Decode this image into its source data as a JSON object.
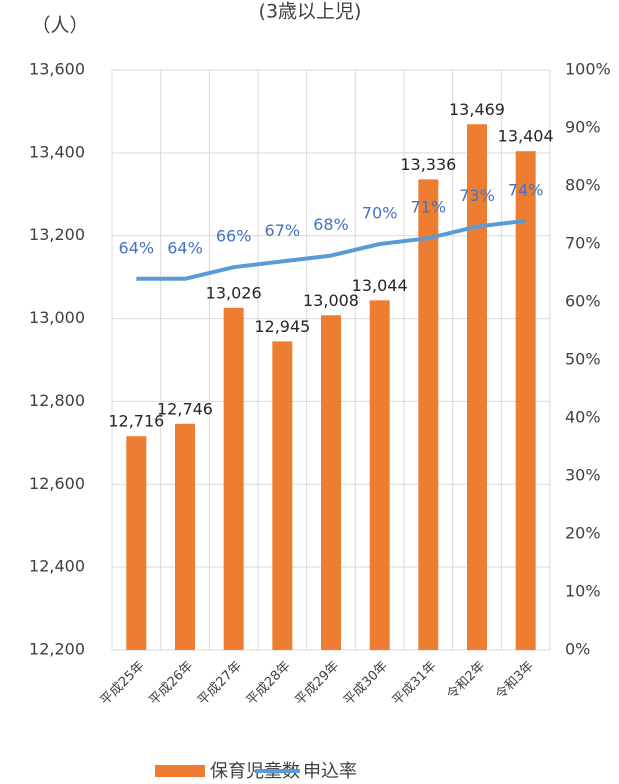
{
  "chart_data": {
    "type": "bar-line",
    "title": "(3歳以上児)",
    "ylabel": "（人）",
    "categories": [
      "平成25年",
      "平成26年",
      "平成27年",
      "平成28年",
      "平成29年",
      "平成30年",
      "平成31年",
      "令和2年",
      "令和3年"
    ],
    "series": [
      {
        "name": "保育児童数",
        "color": "#ed7d31",
        "values": [
          12716,
          12746,
          13026,
          12945,
          13008,
          13044,
          13336,
          13469,
          13404
        ],
        "value_labels": [
          "12,716",
          "12,746",
          "13,026",
          "12,945",
          "13,008",
          "13,044",
          "13,336",
          "13,469",
          "13,404"
        ]
      },
      {
        "name": "申込率",
        "color": "#5b9bd5",
        "axis": "y2",
        "values": [
          64,
          64,
          66,
          67,
          68,
          70,
          71,
          73,
          74
        ],
        "value_labels": [
          "64%",
          "64%",
          "66%",
          "67%",
          "68%",
          "70%",
          "71%",
          "73%",
          "74%"
        ]
      }
    ],
    "ylim": [
      12200,
      13600
    ],
    "yticks": [
      {
        "value": 12200,
        "label": "12,200"
      },
      {
        "value": 12400,
        "label": "12,400"
      },
      {
        "value": 12600,
        "label": "12,600"
      },
      {
        "value": 12800,
        "label": "12,800"
      },
      {
        "value": 13000,
        "label": "13,000"
      },
      {
        "value": 13200,
        "label": "13,200"
      },
      {
        "value": 13400,
        "label": "13,400"
      },
      {
        "value": 13600,
        "label": "13,600"
      }
    ],
    "y2lim": [
      0,
      100
    ],
    "y2ticks": [
      {
        "value": 0,
        "label": "0%"
      },
      {
        "value": 10,
        "label": "10%"
      },
      {
        "value": 20,
        "label": "20%"
      },
      {
        "value": 30,
        "label": "30%"
      },
      {
        "value": 40,
        "label": "40%"
      },
      {
        "value": 50,
        "label": "50%"
      },
      {
        "value": 60,
        "label": "60%"
      },
      {
        "value": 70,
        "label": "70%"
      },
      {
        "value": 80,
        "label": "80%"
      },
      {
        "value": 90,
        "label": "90%"
      },
      {
        "value": 100,
        "label": "100%"
      }
    ],
    "grid": true
  }
}
